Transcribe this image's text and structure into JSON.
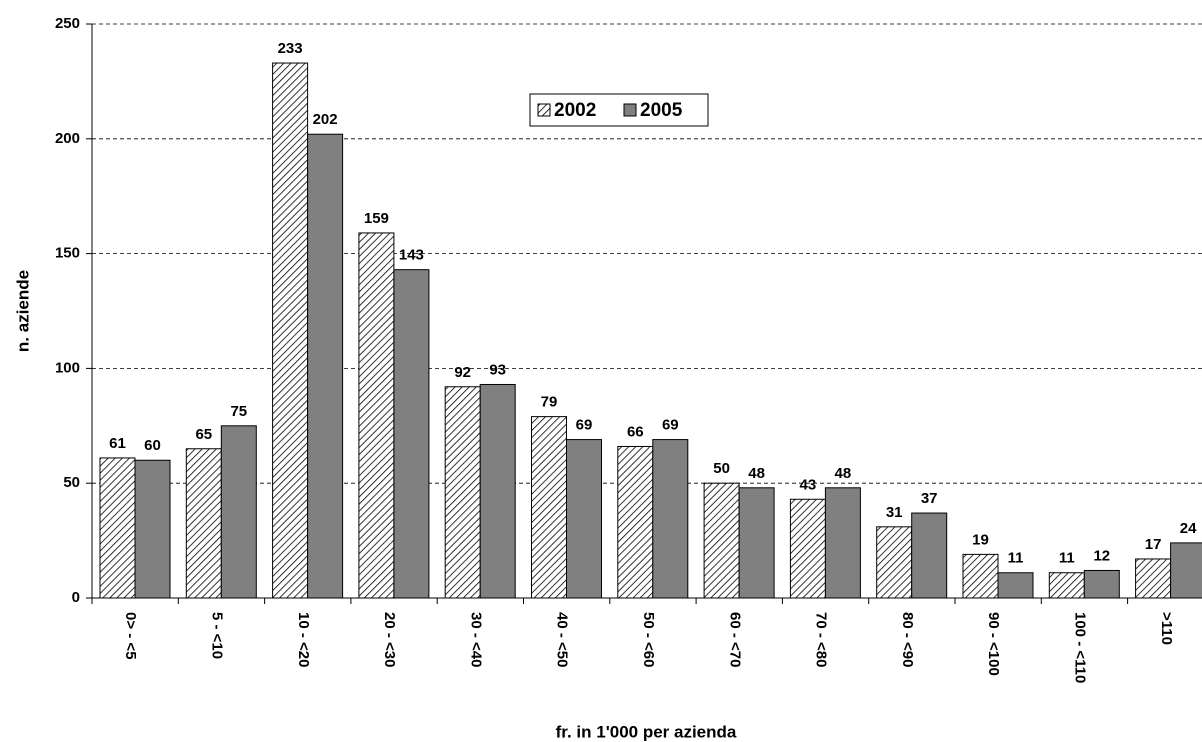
{
  "chart_data": {
    "type": "bar",
    "y_label": "n. aziende",
    "x_label": "fr. in 1'000 per azienda",
    "categories": [
      "0> - <5",
      "5 - <10",
      "10 - <20",
      "20 - <30",
      "30 - <40",
      "40 - <50",
      "50 - <60",
      "60 - <70",
      "70 - <80",
      "80 - <90",
      "90 - <100",
      "100 - <110",
      ">110"
    ],
    "series": [
      {
        "name": "2002",
        "color": "#000000",
        "hatch": true,
        "values": [
          61,
          65,
          233,
          159,
          92,
          79,
          66,
          50,
          43,
          31,
          19,
          11,
          17
        ]
      },
      {
        "name": "2005",
        "color": "#808080",
        "hatch": false,
        "values": [
          60,
          75,
          202,
          143,
          93,
          69,
          69,
          48,
          48,
          37,
          11,
          12,
          24
        ]
      }
    ],
    "ylim": [
      0,
      250
    ],
    "yticks": [
      0,
      50,
      100,
      150,
      200,
      250
    ],
    "grid": true,
    "legend": "top"
  }
}
